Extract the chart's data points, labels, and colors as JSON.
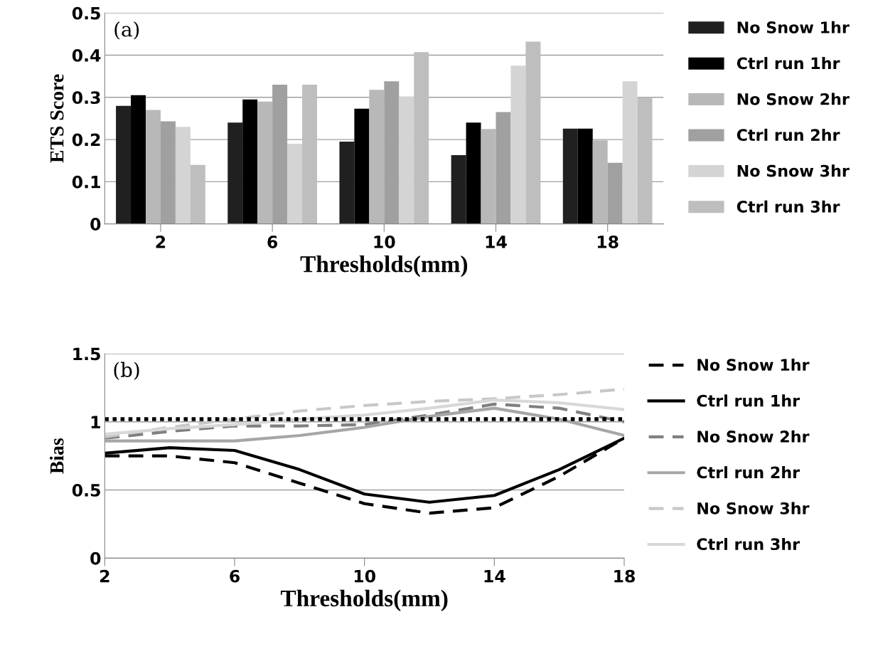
{
  "chart_data": [
    {
      "type": "bar",
      "xlabel": "Thresholds(mm)",
      "ylabel": "ETS Score",
      "annotations": [
        "(a)"
      ],
      "categories": [
        "2",
        "6",
        "10",
        "14",
        "18"
      ],
      "ylim": [
        0,
        0.5
      ],
      "yticks": [
        0,
        0.1,
        0.2,
        0.3,
        0.4,
        0.5
      ],
      "grid": "y",
      "legend": "right",
      "series": [
        {
          "name": "No Snow 1hr",
          "color": "#202020",
          "values": [
            0.28,
            0.24,
            0.195,
            0.163,
            0.226
          ]
        },
        {
          "name": "Ctrl run 1hr",
          "color": "#000000",
          "values": [
            0.305,
            0.295,
            0.273,
            0.24,
            0.226
          ]
        },
        {
          "name": "No Snow 2hr",
          "color": "#b8b8b8",
          "values": [
            0.27,
            0.29,
            0.318,
            0.225,
            0.198
          ]
        },
        {
          "name": "Ctrl run 2hr",
          "color": "#a0a0a0",
          "values": [
            0.243,
            0.33,
            0.338,
            0.265,
            0.145
          ]
        },
        {
          "name": "No Snow 3hr",
          "color": "#d4d4d4",
          "values": [
            0.23,
            0.19,
            0.302,
            0.375,
            0.338
          ]
        },
        {
          "name": "Ctrl run 3hr",
          "color": "#bebebe",
          "values": [
            0.14,
            0.33,
            0.407,
            0.432,
            0.3
          ]
        }
      ]
    },
    {
      "type": "line",
      "xlabel": "Thresholds(mm)",
      "ylabel": "Bias",
      "annotations": [
        "(b)"
      ],
      "x": [
        2,
        4,
        6,
        8,
        10,
        12,
        14,
        16,
        18
      ],
      "xlim": [
        2,
        18
      ],
      "xticks": [
        2,
        6,
        10,
        14,
        18
      ],
      "ylim": [
        0,
        1.5
      ],
      "yticks": [
        0,
        0.5,
        1,
        1.5
      ],
      "grid": "y",
      "legend": "right",
      "ref_lines": [
        {
          "axis": "y",
          "value": 1.02,
          "label": null,
          "color": "#000000",
          "line_style": "dotted"
        }
      ],
      "series": [
        {
          "name": "No Snow 1hr",
          "color": "#000000",
          "line_style": "dashed",
          "values": [
            0.75,
            0.75,
            0.7,
            0.55,
            0.4,
            0.33,
            0.37,
            0.6,
            0.88
          ]
        },
        {
          "name": "Ctrl run 1hr",
          "color": "#000000",
          "line_style": "solid",
          "values": [
            0.77,
            0.81,
            0.79,
            0.65,
            0.47,
            0.41,
            0.46,
            0.65,
            0.88
          ]
        },
        {
          "name": "No Snow 2hr",
          "color": "#808080",
          "line_style": "dashed",
          "values": [
            0.88,
            0.93,
            0.97,
            0.97,
            0.98,
            1.05,
            1.13,
            1.1,
            1.0
          ]
        },
        {
          "name": "Ctrl run 2hr",
          "color": "#a6a6a6",
          "line_style": "solid",
          "values": [
            0.86,
            0.86,
            0.86,
            0.9,
            0.96,
            1.04,
            1.1,
            1.02,
            0.9
          ]
        },
        {
          "name": "No Snow 3hr",
          "color": "#c8c8c8",
          "line_style": "dashed",
          "values": [
            0.89,
            0.96,
            1.02,
            1.08,
            1.12,
            1.15,
            1.17,
            1.2,
            1.24
          ]
        },
        {
          "name": "Ctrl run 3hr",
          "color": "#d8d8d8",
          "line_style": "solid",
          "values": [
            0.91,
            0.95,
            0.98,
            1.02,
            1.05,
            1.1,
            1.16,
            1.14,
            1.09
          ]
        }
      ]
    }
  ]
}
